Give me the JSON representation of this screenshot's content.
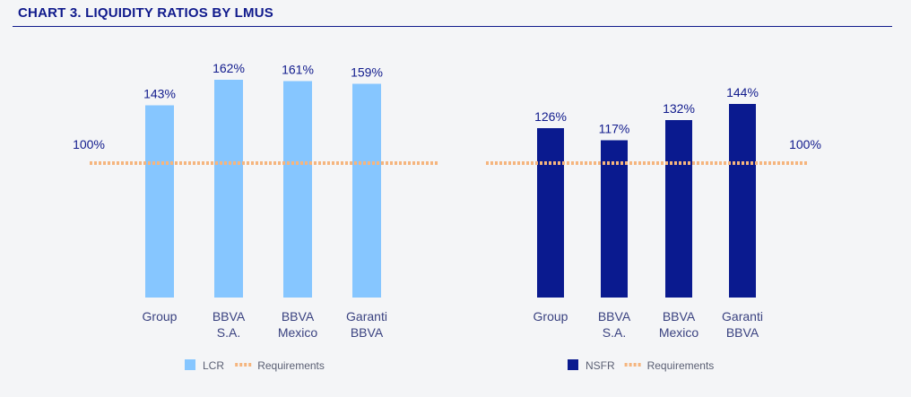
{
  "title": "CHART 3. LIQUIDITY RATIOS BY LMUS",
  "chart_data": [
    {
      "type": "bar",
      "title": "",
      "categories": [
        [
          "Group"
        ],
        [
          "BBVA",
          "S.A."
        ],
        [
          "BBVA",
          "Mexico"
        ],
        [
          "Garanti",
          "BBVA"
        ]
      ],
      "series": [
        {
          "name": "LCR",
          "values": [
            143,
            162,
            161,
            159
          ],
          "labels": [
            "143%",
            "162%",
            "161%",
            "159%"
          ]
        }
      ],
      "requirement": {
        "value": 100,
        "label": "100%",
        "name": "Requirements"
      },
      "ylim": [
        0,
        180
      ],
      "colors": {
        "bar": "#86c6ff",
        "requirement": "#f5b57e"
      }
    },
    {
      "type": "bar",
      "title": "",
      "categories": [
        [
          "Group"
        ],
        [
          "BBVA",
          "S.A."
        ],
        [
          "BBVA",
          "Mexico"
        ],
        [
          "Garanti",
          "BBVA"
        ]
      ],
      "series": [
        {
          "name": "NSFR",
          "values": [
            126,
            117,
            132,
            144
          ],
          "labels": [
            "126%",
            "117%",
            "132%",
            "144%"
          ]
        }
      ],
      "requirement": {
        "value": 100,
        "label": "100%",
        "name": "Requirements"
      },
      "ylim": [
        0,
        180
      ],
      "colors": {
        "bar": "#0a1a8f",
        "requirement": "#f5b57e"
      }
    }
  ]
}
